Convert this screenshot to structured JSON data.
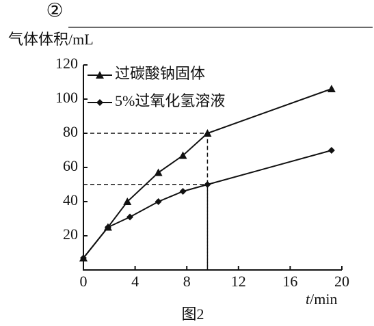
{
  "chart_data": {
    "type": "line",
    "subtitle": "②",
    "title": "图2",
    "y_label": "气体体积/mL",
    "x_label": "t/min",
    "xlim": [
      0,
      20
    ],
    "xticks": [
      0,
      4,
      8,
      12,
      16,
      20
    ],
    "ylim": [
      0,
      120
    ],
    "yticks": [
      20,
      40,
      60,
      80,
      100,
      120
    ],
    "legend": "top-left",
    "series": [
      {
        "name": "过碳酸钠固体",
        "marker": "triangle",
        "color": "#111111",
        "x": [
          0,
          1.9,
          3.4,
          5.8,
          7.7,
          9.6,
          19.2
        ],
        "values": [
          7,
          25,
          40,
          57,
          67,
          80,
          106
        ]
      },
      {
        "name": "5%过氧化氢溶液",
        "marker": "diamond",
        "color": "#111111",
        "x": [
          0,
          1.9,
          3.6,
          5.8,
          7.7,
          9.6,
          19.2
        ],
        "values": [
          7,
          25,
          31,
          40,
          46,
          50,
          70
        ]
      }
    ],
    "guides": [
      {
        "x": 9.6,
        "y": 80
      },
      {
        "x": 9.6,
        "y": 50
      }
    ]
  }
}
